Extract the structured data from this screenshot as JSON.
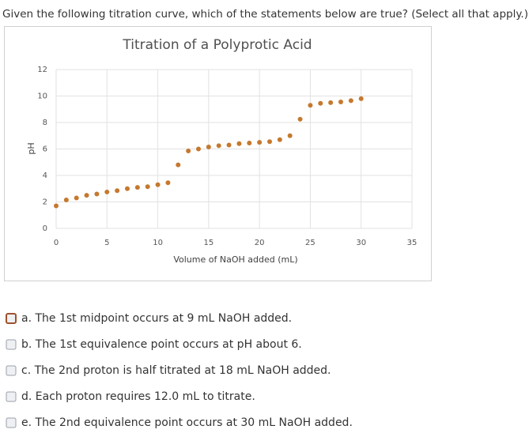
{
  "question": "Given the following titration curve, which of the statements below are true? (Select all that apply.)",
  "chart_data": {
    "type": "scatter",
    "title": "Titration of a Polyprotic Acid",
    "x_label": "Volume of NaOH added (mL)",
    "y_label": "pH",
    "x": [
      0,
      1,
      2,
      3,
      4,
      5,
      6,
      7,
      8,
      9,
      10,
      11,
      12,
      13,
      14,
      15,
      16,
      17,
      18,
      19,
      20,
      21,
      22,
      23,
      24,
      25,
      26,
      27,
      28,
      29,
      30
    ],
    "values": [
      1.7,
      2.15,
      2.3,
      2.5,
      2.6,
      2.75,
      2.85,
      3.0,
      3.1,
      3.15,
      3.3,
      3.45,
      4.8,
      5.85,
      6.0,
      6.15,
      6.25,
      6.3,
      6.4,
      6.45,
      6.5,
      6.55,
      6.7,
      7.0,
      8.25,
      9.3,
      9.45,
      9.5,
      9.55,
      9.65,
      9.8
    ],
    "color": "#c5792e",
    "xlim": [
      0,
      35
    ],
    "xticks": [
      0,
      5,
      10,
      15,
      20,
      25,
      30,
      35
    ],
    "ylim": [
      0,
      12
    ],
    "yticks": [
      0,
      2,
      4,
      6,
      8,
      10,
      12
    ],
    "grid": true
  },
  "options": [
    "a. The 1st midpoint occurs at 9 mL NaOH added.",
    "b. The 1st equivalence point occurs at pH about 6.",
    "c. The 2nd proton is half titrated at 18 mL NaOH added.",
    "d. Each proton requires 12.0 mL to titrate.",
    "e. The 2nd equivalence point occurs at 30 mL NaOH added."
  ]
}
